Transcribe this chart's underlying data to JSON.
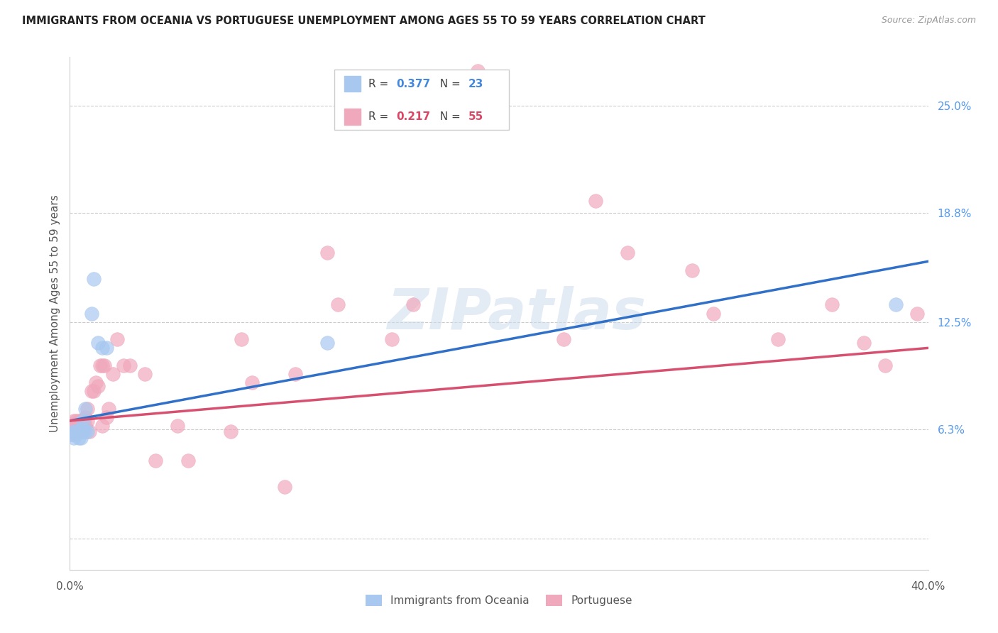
{
  "title": "IMMIGRANTS FROM OCEANIA VS PORTUGUESE UNEMPLOYMENT AMONG AGES 55 TO 59 YEARS CORRELATION CHART",
  "source": "Source: ZipAtlas.com",
  "ylabel": "Unemployment Among Ages 55 to 59 years",
  "xmin": 0.0,
  "xmax": 0.4,
  "ymin": -0.018,
  "ymax": 0.278,
  "blue_R": 0.377,
  "blue_N": 23,
  "pink_R": 0.217,
  "pink_N": 55,
  "blue_color": "#A8C8F0",
  "pink_color": "#F0A8BC",
  "blue_line_color": "#3070C8",
  "pink_line_color": "#D85070",
  "legend_label_blue": "Immigrants from Oceania",
  "legend_label_pink": "Portuguese",
  "watermark_text": "ZIPatlas",
  "grid_vals": [
    0.0,
    0.063,
    0.125,
    0.188,
    0.25
  ],
  "blue_scatter_x": [
    0.001,
    0.002,
    0.002,
    0.003,
    0.003,
    0.004,
    0.004,
    0.005,
    0.005,
    0.005,
    0.006,
    0.006,
    0.006,
    0.007,
    0.007,
    0.008,
    0.01,
    0.011,
    0.013,
    0.015,
    0.017,
    0.12,
    0.385
  ],
  "blue_scatter_y": [
    0.06,
    0.062,
    0.058,
    0.062,
    0.06,
    0.062,
    0.058,
    0.063,
    0.062,
    0.058,
    0.063,
    0.062,
    0.068,
    0.075,
    0.062,
    0.062,
    0.13,
    0.15,
    0.113,
    0.11,
    0.11,
    0.113,
    0.135
  ],
  "pink_scatter_x": [
    0.001,
    0.001,
    0.002,
    0.002,
    0.003,
    0.003,
    0.004,
    0.004,
    0.005,
    0.005,
    0.006,
    0.006,
    0.007,
    0.007,
    0.008,
    0.008,
    0.009,
    0.01,
    0.011,
    0.012,
    0.013,
    0.014,
    0.015,
    0.015,
    0.016,
    0.017,
    0.018,
    0.02,
    0.022,
    0.025,
    0.028,
    0.035,
    0.04,
    0.05,
    0.055,
    0.075,
    0.08,
    0.085,
    0.1,
    0.105,
    0.12,
    0.125,
    0.15,
    0.16,
    0.19,
    0.23,
    0.245,
    0.26,
    0.29,
    0.3,
    0.33,
    0.355,
    0.37,
    0.38,
    0.395
  ],
  "pink_scatter_y": [
    0.063,
    0.06,
    0.068,
    0.063,
    0.068,
    0.063,
    0.068,
    0.062,
    0.068,
    0.063,
    0.065,
    0.063,
    0.065,
    0.07,
    0.068,
    0.075,
    0.062,
    0.085,
    0.085,
    0.09,
    0.088,
    0.1,
    0.065,
    0.1,
    0.1,
    0.07,
    0.075,
    0.095,
    0.115,
    0.1,
    0.1,
    0.095,
    0.045,
    0.065,
    0.045,
    0.062,
    0.115,
    0.09,
    0.03,
    0.095,
    0.165,
    0.135,
    0.115,
    0.135,
    0.27,
    0.115,
    0.195,
    0.165,
    0.155,
    0.13,
    0.115,
    0.135,
    0.113,
    0.1,
    0.13
  ],
  "blue_line_x0": 0.0,
  "blue_line_y0": 0.068,
  "blue_line_x1": 0.4,
  "blue_line_y1": 0.16,
  "pink_line_x0": 0.0,
  "pink_line_y0": 0.068,
  "pink_line_x1": 0.4,
  "pink_line_y1": 0.11
}
